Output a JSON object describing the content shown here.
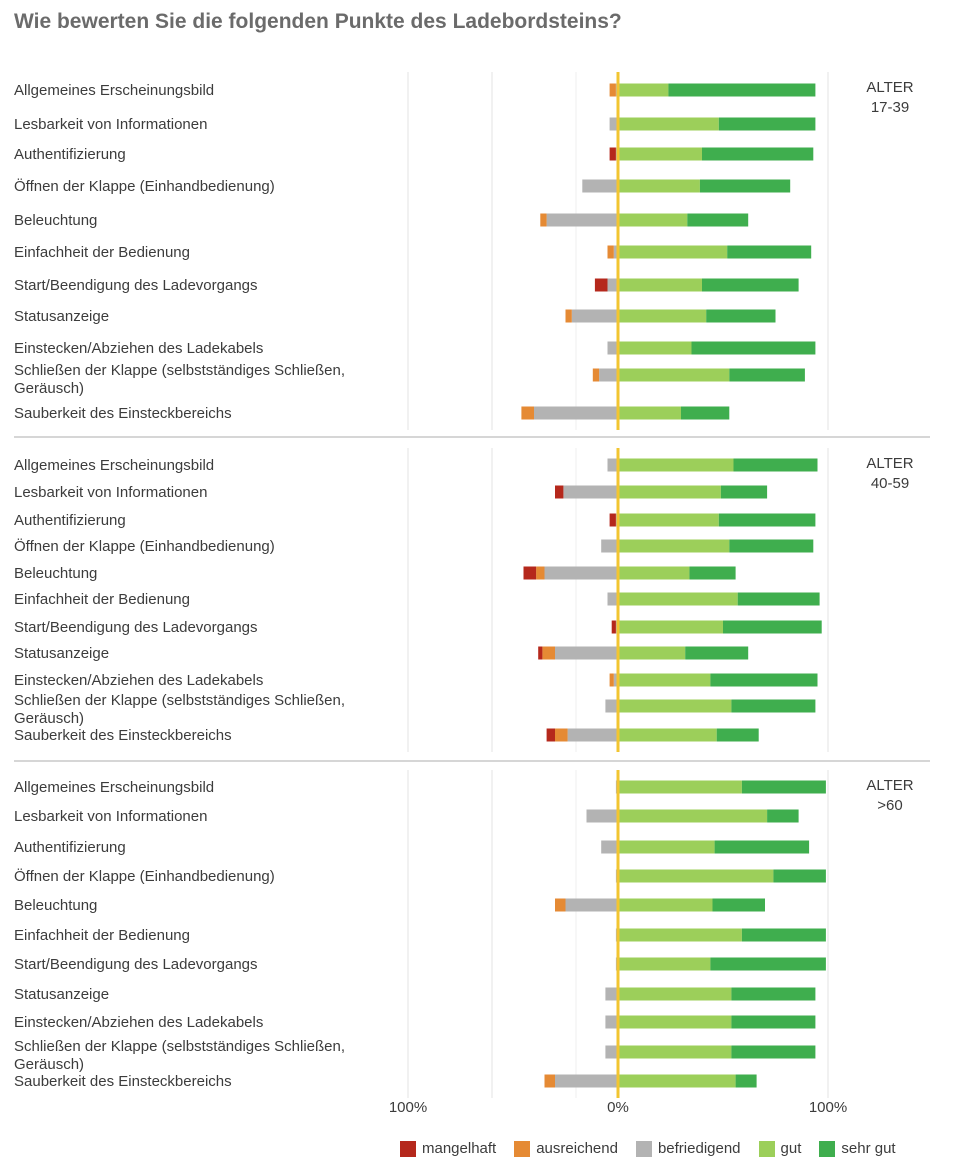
{
  "chart_data": {
    "type": "bar",
    "orientation": "horizontal",
    "stacked": "diverging",
    "title": "Wie bewerten Sie die folgenden Punkte des Ladebordsteins?",
    "xlabel": "",
    "ylabel": "",
    "unit": "%",
    "xlim": [
      -100,
      100
    ],
    "x_ticks": [
      "100%",
      "0%",
      "100%"
    ],
    "grid": true,
    "legend_position": "bottom",
    "categories": [
      "Allgemeines Erscheinungsbild",
      "Lesbarkeit von Informationen",
      "Authentifizierung",
      "Öffnen der Klappe (Einhandbedienung)",
      "Beleuchtung",
      "Einfachheit der Bedienung",
      "Start/Beendigung des Ladevorgangs",
      "Statusanzeige",
      "Einstecken/Abziehen des Ladekabels",
      "Schließen der Klappe (selbstständiges Schließen, Geräusch)",
      "Sauberkeit des Einsteckbereichs"
    ],
    "series_names": [
      "mangelhaft",
      "ausreichend",
      "befriedigend",
      "gut",
      "sehr gut"
    ],
    "series_colors": [
      "#b5281c",
      "#e58a34",
      "#b3b3b3",
      "#9ccf5a",
      "#3fae4e"
    ],
    "panels": [
      {
        "label": "ALTER\n17-39",
        "rows": [
          {
            "mangelhaft": 0,
            "ausreichend": 3,
            "befriedigend": 1,
            "gut": 24,
            "sehr gut": 70
          },
          {
            "mangelhaft": 0,
            "ausreichend": 0,
            "befriedigend": 4,
            "gut": 48,
            "sehr gut": 46
          },
          {
            "mangelhaft": 3,
            "ausreichend": 0,
            "befriedigend": 1,
            "gut": 40,
            "sehr gut": 53
          },
          {
            "mangelhaft": 0,
            "ausreichend": 0,
            "befriedigend": 17,
            "gut": 39,
            "sehr gut": 43
          },
          {
            "mangelhaft": 0,
            "ausreichend": 3,
            "befriedigend": 34,
            "gut": 33,
            "sehr gut": 29
          },
          {
            "mangelhaft": 0,
            "ausreichend": 3,
            "befriedigend": 2,
            "gut": 52,
            "sehr gut": 40
          },
          {
            "mangelhaft": 6,
            "ausreichend": 0,
            "befriedigend": 5,
            "gut": 40,
            "sehr gut": 46
          },
          {
            "mangelhaft": 0,
            "ausreichend": 3,
            "befriedigend": 22,
            "gut": 42,
            "sehr gut": 33
          },
          {
            "mangelhaft": 0,
            "ausreichend": 0,
            "befriedigend": 5,
            "gut": 35,
            "sehr gut": 59
          },
          {
            "mangelhaft": 0,
            "ausreichend": 3,
            "befriedigend": 9,
            "gut": 53,
            "sehr gut": 36
          },
          {
            "mangelhaft": 0,
            "ausreichend": 6,
            "befriedigend": 40,
            "gut": 30,
            "sehr gut": 23
          }
        ]
      },
      {
        "label": "ALTER\n40-59",
        "rows": [
          {
            "mangelhaft": 0,
            "ausreichend": 0,
            "befriedigend": 5,
            "gut": 55,
            "sehr gut": 40
          },
          {
            "mangelhaft": 4,
            "ausreichend": 0,
            "befriedigend": 26,
            "gut": 49,
            "sehr gut": 22
          },
          {
            "mangelhaft": 3,
            "ausreichend": 0,
            "befriedigend": 1,
            "gut": 48,
            "sehr gut": 46
          },
          {
            "mangelhaft": 0,
            "ausreichend": 0,
            "befriedigend": 8,
            "gut": 53,
            "sehr gut": 40
          },
          {
            "mangelhaft": 6,
            "ausreichend": 4,
            "befriedigend": 35,
            "gut": 34,
            "sehr gut": 22
          },
          {
            "mangelhaft": 0,
            "ausreichend": 0,
            "befriedigend": 5,
            "gut": 57,
            "sehr gut": 39
          },
          {
            "mangelhaft": 2,
            "ausreichend": 0,
            "befriedigend": 1,
            "gut": 50,
            "sehr gut": 47
          },
          {
            "mangelhaft": 2,
            "ausreichend": 6,
            "befriedigend": 30,
            "gut": 32,
            "sehr gut": 30
          },
          {
            "mangelhaft": 0,
            "ausreichend": 2,
            "befriedigend": 2,
            "gut": 44,
            "sehr gut": 51
          },
          {
            "mangelhaft": 0,
            "ausreichend": 0,
            "befriedigend": 6,
            "gut": 54,
            "sehr gut": 40
          },
          {
            "mangelhaft": 4,
            "ausreichend": 6,
            "befriedigend": 24,
            "gut": 47,
            "sehr gut": 20
          }
        ]
      },
      {
        "label": "ALTER\n>60",
        "rows": [
          {
            "mangelhaft": 0,
            "ausreichend": 0,
            "befriedigend": 1,
            "gut": 59,
            "sehr gut": 40
          },
          {
            "mangelhaft": 0,
            "ausreichend": 0,
            "befriedigend": 15,
            "gut": 71,
            "sehr gut": 15
          },
          {
            "mangelhaft": 0,
            "ausreichend": 0,
            "befriedigend": 8,
            "gut": 46,
            "sehr gut": 45
          },
          {
            "mangelhaft": 0,
            "ausreichend": 0,
            "befriedigend": 1,
            "gut": 74,
            "sehr gut": 25
          },
          {
            "mangelhaft": 0,
            "ausreichend": 5,
            "befriedigend": 25,
            "gut": 45,
            "sehr gut": 25
          },
          {
            "mangelhaft": 0,
            "ausreichend": 0,
            "befriedigend": 1,
            "gut": 59,
            "sehr gut": 40
          },
          {
            "mangelhaft": 0,
            "ausreichend": 0,
            "befriedigend": 1,
            "gut": 44,
            "sehr gut": 55
          },
          {
            "mangelhaft": 0,
            "ausreichend": 0,
            "befriedigend": 6,
            "gut": 54,
            "sehr gut": 40
          },
          {
            "mangelhaft": 0,
            "ausreichend": 0,
            "befriedigend": 6,
            "gut": 54,
            "sehr gut": 40
          },
          {
            "mangelhaft": 0,
            "ausreichend": 0,
            "befriedigend": 6,
            "gut": 54,
            "sehr gut": 40
          },
          {
            "mangelhaft": 0,
            "ausreichend": 5,
            "befriedigend": 30,
            "gut": 56,
            "sehr gut": 10
          }
        ]
      }
    ]
  }
}
